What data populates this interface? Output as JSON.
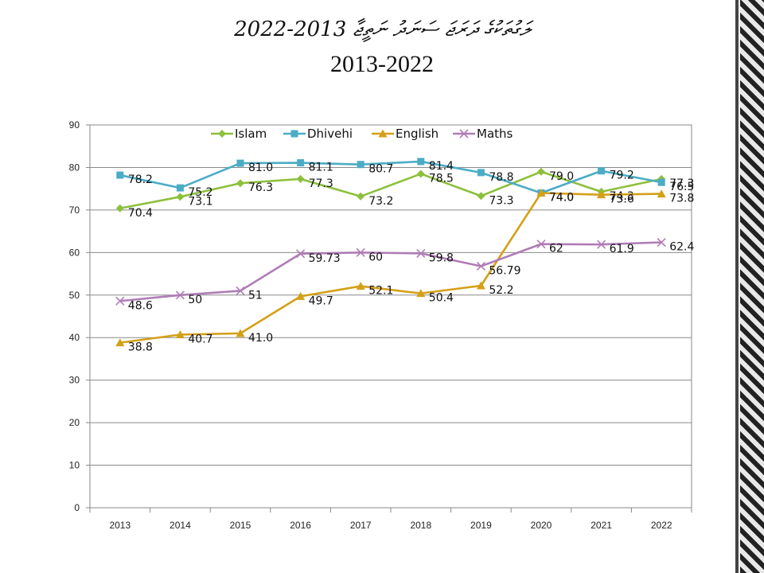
{
  "title": {
    "line1": "ލަގުތަކުގެ ދަރަޖަ ސަނަދު ނަތީޖާ 2013-2022",
    "line2": "2013-2022"
  },
  "colors": {
    "Islam": "#8dc03c",
    "Dhivehi": "#4bacc6",
    "English": "#d4a017",
    "Maths": "#b07cb6"
  },
  "chart_data": {
    "type": "line",
    "title": "2013-2022",
    "categories": [
      "2013",
      "2014",
      "2015",
      "2016",
      "2017",
      "2018",
      "2019",
      "2020",
      "2021",
      "2022"
    ],
    "ylim": [
      0,
      90
    ],
    "yticks": [
      0,
      10,
      20,
      30,
      40,
      50,
      60,
      70,
      80,
      90
    ],
    "grid": true,
    "legend_position": "top",
    "series": [
      {
        "name": "Islam",
        "marker": "diamond",
        "values": [
          70.4,
          73.1,
          76.3,
          77.3,
          73.2,
          78.5,
          73.3,
          79.0,
          74.3,
          77.3
        ],
        "labels": [
          "70.4",
          "73.1",
          "76.3",
          "77.3",
          "73.2",
          "78.5",
          "73.3",
          "79.0",
          "74.3",
          "77.3"
        ]
      },
      {
        "name": "Dhivehi",
        "marker": "square",
        "values": [
          78.2,
          75.2,
          81.0,
          81.1,
          80.7,
          81.4,
          78.8,
          74.0,
          79.2,
          76.5
        ],
        "labels": [
          "78.2",
          "75.2",
          "81.0",
          "81.1",
          "80.7",
          "81.4",
          "78.8",
          "74.0",
          "79.2",
          "76.5"
        ]
      },
      {
        "name": "English",
        "marker": "triangle",
        "values": [
          38.8,
          40.7,
          41.0,
          49.7,
          52.1,
          50.4,
          52.2,
          74.0,
          73.6,
          73.8
        ],
        "labels": [
          "38.8",
          "40.7",
          "41.0",
          "49.7",
          "52.1",
          "50.4",
          "52.2",
          "74.0",
          "73.6",
          "73.8"
        ]
      },
      {
        "name": "Maths",
        "marker": "x",
        "values": [
          48.6,
          50,
          51,
          59.73,
          60,
          59.8,
          56.79,
          62,
          61.9,
          62.4
        ],
        "labels": [
          "48.6",
          "50",
          "51",
          "59.73",
          "60",
          "59.8",
          "56.79",
          "62",
          "61.9",
          "62.4"
        ]
      }
    ]
  }
}
